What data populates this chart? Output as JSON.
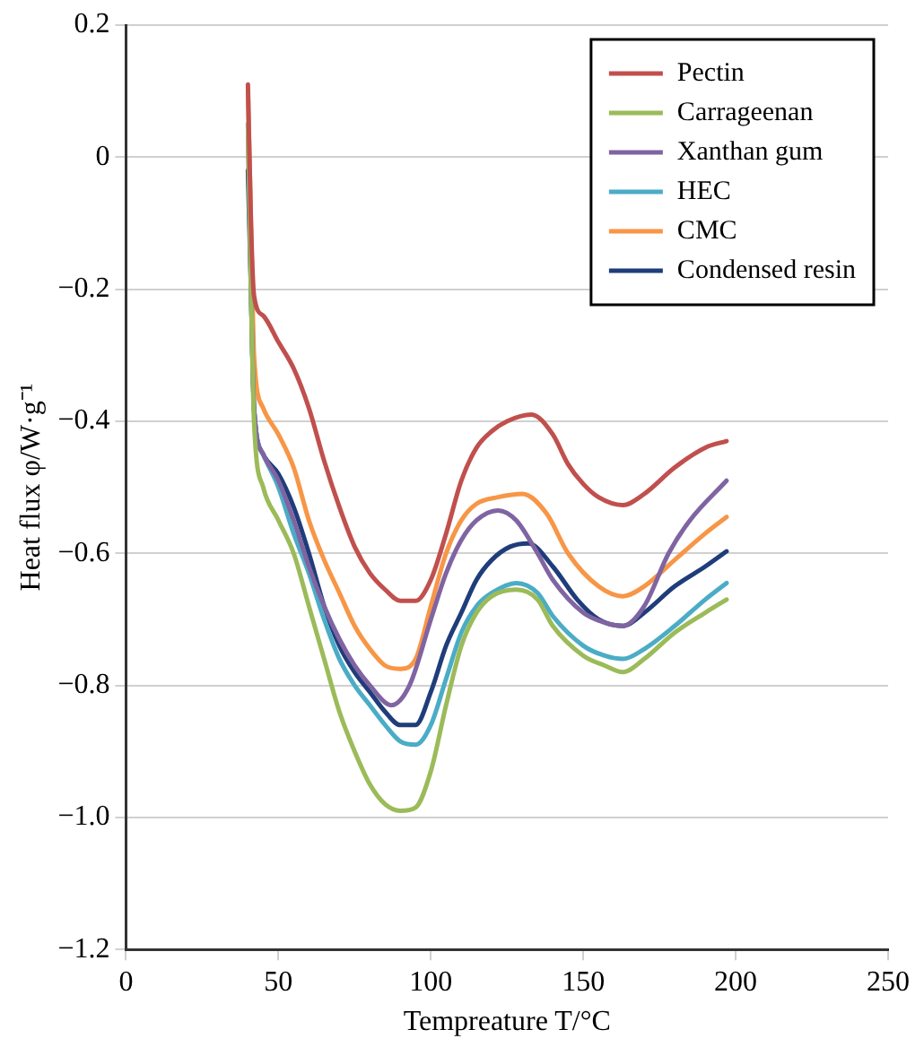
{
  "chart_data": {
    "type": "line",
    "xlabel": "Tempreature T/°C",
    "ylabel": "Heat flux φ/W·g⁻¹",
    "xlim": [
      0,
      250
    ],
    "xticks": [
      0,
      50,
      100,
      150,
      200,
      250
    ],
    "ylim": [
      -1.2,
      0.2
    ],
    "yticks": [
      {
        "value": -1.2,
        "label": "−1.2"
      },
      {
        "value": -1.0,
        "label": "−1.0"
      },
      {
        "value": -0.8,
        "label": "−0.8"
      },
      {
        "value": -0.6,
        "label": "−0.6"
      },
      {
        "value": -0.4,
        "label": "−0.4"
      },
      {
        "value": -0.2,
        "label": "−0.2"
      },
      0,
      0.2
    ],
    "grid": "y",
    "legend": "top right",
    "marker": "none",
    "line_style": "solid",
    "series": [
      {
        "name": "Pectin",
        "color": "#c0504d",
        "x": [
          40,
          41,
          42,
          45,
          50,
          55,
          60,
          65,
          70,
          75,
          80,
          85,
          90,
          95,
          100,
          105,
          110,
          115,
          120,
          125,
          133,
          140,
          145,
          150,
          155,
          163,
          170,
          180,
          190,
          197
        ],
        "values": [
          0.11,
          -0.1,
          -0.21,
          -0.24,
          -0.28,
          -0.32,
          -0.38,
          -0.46,
          -0.53,
          -0.59,
          -0.63,
          -0.655,
          -0.672,
          -0.672,
          -0.64,
          -0.57,
          -0.49,
          -0.44,
          -0.415,
          -0.4,
          -0.39,
          -0.42,
          -0.465,
          -0.495,
          -0.515,
          -0.527,
          -0.51,
          -0.47,
          -0.44,
          -0.43
        ]
      },
      {
        "name": "Carrageenan",
        "color": "#9bbb59",
        "x": [
          40,
          41,
          42,
          45,
          50,
          55,
          60,
          65,
          70,
          75,
          80,
          85,
          90,
          95,
          100,
          105,
          110,
          115,
          120,
          128,
          135,
          140,
          150,
          157,
          163,
          170,
          180,
          190,
          197
        ],
        "values": [
          0.05,
          -0.2,
          -0.4,
          -0.5,
          -0.55,
          -0.6,
          -0.68,
          -0.76,
          -0.84,
          -0.9,
          -0.95,
          -0.98,
          -0.99,
          -0.985,
          -0.93,
          -0.83,
          -0.74,
          -0.69,
          -0.665,
          -0.655,
          -0.67,
          -0.71,
          -0.755,
          -0.77,
          -0.78,
          -0.76,
          -0.72,
          -0.69,
          -0.67
        ]
      },
      {
        "name": "Xanthan gum",
        "color": "#8064a2",
        "x": [
          40,
          41,
          42,
          45,
          50,
          55,
          60,
          65,
          70,
          75,
          80,
          87,
          93,
          100,
          105,
          110,
          115,
          122,
          128,
          135,
          140,
          150,
          157,
          163,
          170,
          178,
          185,
          197
        ],
        "values": [
          0.05,
          -0.2,
          -0.38,
          -0.45,
          -0.49,
          -0.55,
          -0.62,
          -0.68,
          -0.73,
          -0.77,
          -0.8,
          -0.83,
          -0.8,
          -0.7,
          -0.63,
          -0.58,
          -0.55,
          -0.535,
          -0.55,
          -0.6,
          -0.64,
          -0.69,
          -0.705,
          -0.71,
          -0.68,
          -0.6,
          -0.55,
          -0.49
        ]
      },
      {
        "name": "HEC",
        "color": "#4bacc6",
        "x": [
          41,
          42,
          45,
          50,
          55,
          60,
          65,
          70,
          75,
          80,
          85,
          90,
          95,
          100,
          105,
          110,
          115,
          120,
          128,
          135,
          140,
          150,
          157,
          163,
          170,
          180,
          190,
          197
        ],
        "values": [
          -0.2,
          -0.38,
          -0.45,
          -0.5,
          -0.57,
          -0.63,
          -0.7,
          -0.76,
          -0.8,
          -0.83,
          -0.86,
          -0.885,
          -0.89,
          -0.86,
          -0.79,
          -0.72,
          -0.68,
          -0.66,
          -0.645,
          -0.66,
          -0.695,
          -0.74,
          -0.755,
          -0.76,
          -0.745,
          -0.71,
          -0.67,
          -0.645
        ]
      },
      {
        "name": "CMC",
        "color": "#f79646",
        "x": [
          40,
          41,
          42,
          45,
          50,
          55,
          60,
          65,
          70,
          75,
          80,
          85,
          90,
          95,
          100,
          105,
          110,
          115,
          122,
          130,
          138,
          145,
          155,
          163,
          170,
          180,
          190,
          197
        ],
        "values": [
          0.1,
          -0.1,
          -0.3,
          -0.38,
          -0.42,
          -0.47,
          -0.55,
          -0.61,
          -0.66,
          -0.71,
          -0.745,
          -0.77,
          -0.775,
          -0.76,
          -0.68,
          -0.6,
          -0.55,
          -0.525,
          -0.515,
          -0.51,
          -0.54,
          -0.6,
          -0.65,
          -0.665,
          -0.65,
          -0.61,
          -0.57,
          -0.545
        ]
      },
      {
        "name": "Condensed resin",
        "color": "#1f3d7a",
        "x": [
          40,
          41,
          42,
          45,
          50,
          55,
          60,
          65,
          70,
          75,
          80,
          85,
          90,
          95,
          100,
          105,
          110,
          115,
          120,
          126,
          132,
          140,
          148,
          155,
          163,
          170,
          180,
          190,
          197
        ],
        "values": [
          -0.02,
          -0.2,
          -0.38,
          -0.45,
          -0.48,
          -0.53,
          -0.6,
          -0.68,
          -0.74,
          -0.78,
          -0.81,
          -0.84,
          -0.86,
          -0.86,
          -0.81,
          -0.74,
          -0.69,
          -0.64,
          -0.61,
          -0.59,
          -0.585,
          -0.62,
          -0.67,
          -0.7,
          -0.71,
          -0.69,
          -0.65,
          -0.62,
          -0.597
        ]
      }
    ]
  }
}
